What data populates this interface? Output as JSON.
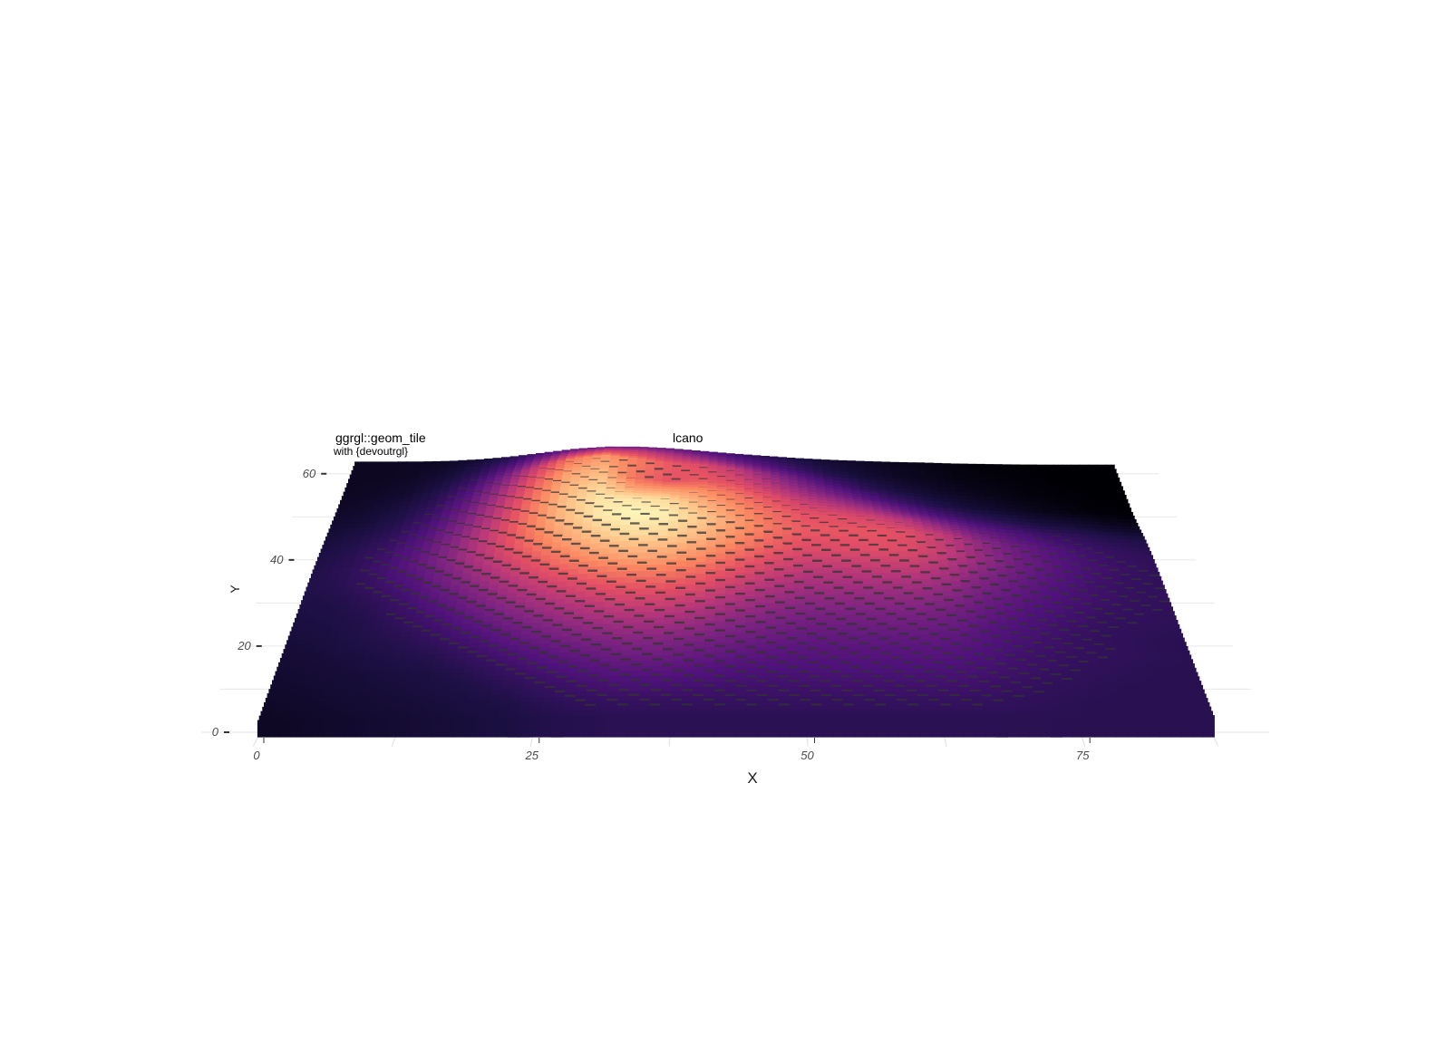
{
  "chart_data": {
    "type": "heatmap",
    "render_style": "3d extruded tiles",
    "title": "ggrgl::geom_tile",
    "title_tail": "lcano",
    "subtitle": "with {devoutrgl}",
    "xlabel": "X",
    "ylabel": "Y",
    "x_ticks": [
      "0",
      "25",
      "50",
      "75"
    ],
    "y_ticks": [
      "0",
      "20",
      "40",
      "60"
    ],
    "xlim": [
      0,
      87
    ],
    "ylim": [
      0,
      61
    ],
    "grid": true,
    "colormap": "magma",
    "fill_range": [
      94,
      195
    ],
    "elevation_rows": [
      [
        100,
        101,
        102,
        103,
        104,
        105,
        106,
        108,
        109,
        110,
        110,
        110,
        110,
        110,
        110,
        110,
        110,
        110,
        110,
        110,
        110,
        110,
        110,
        110,
        110
      ],
      [
        101,
        102,
        103,
        104,
        105,
        106,
        107,
        110,
        112,
        113,
        113,
        113,
        113,
        113,
        113,
        113,
        113,
        113,
        113,
        112,
        111,
        110,
        110,
        110,
        110
      ],
      [
        102,
        103,
        104,
        105,
        106,
        107,
        110,
        113,
        116,
        118,
        118,
        117,
        116,
        116,
        116,
        116,
        116,
        116,
        116,
        114,
        112,
        111,
        110,
        110,
        110
      ],
      [
        103,
        104,
        105,
        106,
        107,
        110,
        114,
        118,
        121,
        124,
        124,
        122,
        120,
        119,
        119,
        119,
        119,
        119,
        118,
        116,
        114,
        112,
        111,
        110,
        110
      ],
      [
        104,
        105,
        106,
        108,
        110,
        114,
        119,
        124,
        128,
        131,
        131,
        128,
        125,
        123,
        122,
        122,
        122,
        122,
        121,
        118,
        115,
        113,
        112,
        111,
        110
      ],
      [
        105,
        106,
        108,
        110,
        114,
        119,
        126,
        132,
        137,
        140,
        140,
        136,
        131,
        128,
        126,
        126,
        126,
        126,
        124,
        120,
        117,
        114,
        112,
        111,
        110
      ],
      [
        106,
        107,
        109,
        113,
        118,
        126,
        134,
        141,
        147,
        151,
        151,
        146,
        139,
        134,
        131,
        131,
        131,
        131,
        128,
        123,
        119,
        116,
        113,
        112,
        111
      ],
      [
        107,
        108,
        111,
        116,
        124,
        133,
        143,
        152,
        159,
        163,
        163,
        158,
        149,
        142,
        138,
        138,
        138,
        138,
        134,
        127,
        122,
        118,
        115,
        113,
        112
      ],
      [
        108,
        110,
        114,
        120,
        130,
        141,
        153,
        164,
        172,
        177,
        176,
        170,
        160,
        152,
        146,
        146,
        147,
        147,
        141,
        132,
        125,
        120,
        116,
        113,
        112
      ],
      [
        108,
        111,
        116,
        124,
        135,
        148,
        162,
        174,
        183,
        188,
        187,
        180,
        170,
        161,
        155,
        155,
        156,
        155,
        148,
        137,
        128,
        122,
        117,
        114,
        112
      ],
      [
        107,
        110,
        115,
        123,
        135,
        150,
        166,
        180,
        190,
        194,
        192,
        185,
        175,
        166,
        160,
        159,
        159,
        156,
        148,
        136,
        127,
        121,
        116,
        113,
        111
      ],
      [
        105,
        108,
        112,
        120,
        132,
        148,
        166,
        182,
        190,
        190,
        188,
        180,
        172,
        164,
        158,
        156,
        152,
        145,
        135,
        126,
        120,
        115,
        112,
        109,
        107
      ],
      [
        103,
        105,
        109,
        116,
        128,
        145,
        164,
        180,
        186,
        176,
        174,
        172,
        166,
        158,
        150,
        144,
        137,
        128,
        120,
        114,
        110,
        106,
        104,
        101,
        99
      ],
      [
        101,
        103,
        106,
        112,
        123,
        140,
        160,
        176,
        181,
        165,
        158,
        160,
        156,
        147,
        138,
        130,
        122,
        115,
        109,
        105,
        102,
        99,
        97,
        95,
        94
      ],
      [
        100,
        101,
        103,
        108,
        117,
        132,
        152,
        168,
        175,
        168,
        160,
        156,
        148,
        137,
        127,
        118,
        111,
        106,
        103,
        100,
        98,
        96,
        95,
        94,
        94
      ],
      [
        100,
        100,
        101,
        104,
        110,
        120,
        134,
        146,
        152,
        150,
        144,
        137,
        129,
        121,
        114,
        108,
        104,
        101,
        99,
        97,
        96,
        95,
        94,
        94,
        94
      ],
      [
        100,
        100,
        100,
        101,
        104,
        109,
        116,
        123,
        127,
        127,
        124,
        119,
        114,
        110,
        106,
        103,
        101,
        99,
        98,
        96,
        95,
        94,
        94,
        94,
        94
      ]
    ]
  }
}
